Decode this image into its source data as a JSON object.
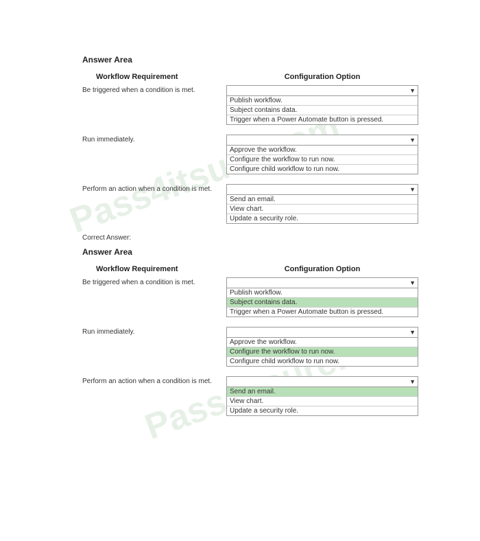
{
  "watermark_text": "Pass4itsure.com",
  "watermark_color": "#5a9e5a",
  "question": {
    "title": "Answer Area",
    "headers": {
      "left": "Workflow Requirement",
      "right": "Configuration Option"
    },
    "rows": [
      {
        "requirement": "Be triggered when a condition is met.",
        "options": [
          "Publish workflow.",
          "Subject contains data.",
          "Trigger when a Power Automate button is pressed."
        ],
        "highlighted": null
      },
      {
        "requirement": "Run immediately.",
        "options": [
          "Approve the workflow.",
          "Configure the workflow to run now.",
          "Configure child workflow to run now."
        ],
        "highlighted": null
      },
      {
        "requirement": "Perform an action when a condition is met.",
        "options": [
          "Send an email.",
          "View chart.",
          "Update a security role."
        ],
        "highlighted": null
      }
    ]
  },
  "correct_label": "Correct Answer:",
  "answer": {
    "title": "Answer Area",
    "headers": {
      "left": "Workflow Requirement",
      "right": "Configuration Option"
    },
    "rows": [
      {
        "requirement": "Be triggered when a condition is met.",
        "options": [
          "Publish workflow.",
          "Subject contains data.",
          "Trigger when a Power Automate button is pressed."
        ],
        "highlighted": 1
      },
      {
        "requirement": "Run immediately.",
        "options": [
          "Approve the workflow.",
          "Configure the workflow to run now.",
          "Configure child workflow to run now."
        ],
        "highlighted": 1
      },
      {
        "requirement": "Perform an action when a condition is met.",
        "options": [
          "Send an email.",
          "View chart.",
          "Update a security role."
        ],
        "highlighted": 0
      }
    ]
  },
  "highlight_color": "#b8e0b8"
}
